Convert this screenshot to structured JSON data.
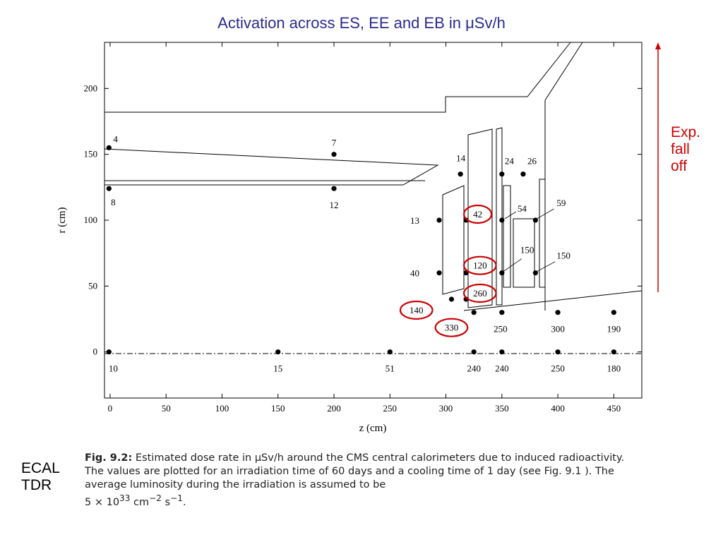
{
  "title": "Activation across ES, EE and EB in μSv/h",
  "side_annotation": [
    "Exp.",
    "fall",
    "off"
  ],
  "doc_label": [
    "ECAL",
    "TDR"
  ],
  "caption": {
    "label": "Fig. 9.2:",
    "text": "Estimated dose rate in μSv/h around the CMS central calorimeters due to induced radioactivity. The values are plotted for an irradiation time of 60 days and a cooling time of 1 day (see Fig. 9.1 ). The average luminosity during the irradiation is assumed to be",
    "formula_base": "5 × 10",
    "formula_exp1": "33",
    "formula_unit1": " cm",
    "formula_exp2": "−2",
    "formula_unit2": " s",
    "formula_exp3": "−1",
    "formula_end": "."
  },
  "colors": {
    "title": "#2b2b8f",
    "highlight": "#cc0000",
    "ink": "#000000"
  },
  "chart_data": {
    "type": "scatter",
    "xlabel": "z (cm)",
    "ylabel": "r (cm)",
    "xlim": [
      -5,
      475
    ],
    "ylim": [
      -35,
      235
    ],
    "xticks": [
      0,
      50,
      100,
      150,
      200,
      250,
      300,
      350,
      400,
      450
    ],
    "yticks": [
      0,
      50,
      100,
      150,
      200
    ],
    "points": [
      {
        "x": -1,
        "y": 155,
        "label": "4",
        "circled": false
      },
      {
        "x": -1,
        "y": 124,
        "label": "8",
        "circled": false
      },
      {
        "x": 200,
        "y": 150,
        "label": "7",
        "circled": false
      },
      {
        "x": 200,
        "y": 124,
        "label": "12",
        "circled": false
      },
      {
        "x": 313,
        "y": 135,
        "label": "14",
        "circled": false
      },
      {
        "x": 350,
        "y": 135,
        "label": "24",
        "circled": false
      },
      {
        "x": 369,
        "y": 135,
        "label": "26",
        "circled": false
      },
      {
        "x": 294,
        "y": 100,
        "label": "13",
        "circled": false
      },
      {
        "x": 318,
        "y": 100,
        "label": "42",
        "circled": true
      },
      {
        "x": 350,
        "y": 100,
        "label": "54",
        "circled": false
      },
      {
        "x": 380,
        "y": 100,
        "label": "59",
        "circled": false
      },
      {
        "x": 294,
        "y": 60,
        "label": "40",
        "circled": false
      },
      {
        "x": 318,
        "y": 60,
        "label": "120",
        "circled": true
      },
      {
        "x": 350,
        "y": 60,
        "label": "150",
        "circled": false
      },
      {
        "x": 380,
        "y": 60,
        "label": "150",
        "circled": false
      },
      {
        "x": 305,
        "y": 40,
        "label": "140",
        "circled": true
      },
      {
        "x": 318,
        "y": 40,
        "label": "260",
        "circled": true
      },
      {
        "x": 325,
        "y": 30,
        "label": "330",
        "circled": true
      },
      {
        "x": 350,
        "y": 30,
        "label": "250",
        "circled": false
      },
      {
        "x": 400,
        "y": 30,
        "label": "300",
        "circled": false
      },
      {
        "x": 450,
        "y": 30,
        "label": "190",
        "circled": false
      },
      {
        "x": -1,
        "y": 0,
        "label": "10",
        "circled": false
      },
      {
        "x": 150,
        "y": 0,
        "label": "15",
        "circled": false
      },
      {
        "x": 250,
        "y": 0,
        "label": "51",
        "circled": false
      },
      {
        "x": 325,
        "y": 0,
        "label": "240",
        "circled": false
      },
      {
        "x": 350,
        "y": 0,
        "label": "240",
        "circled": false
      },
      {
        "x": 400,
        "y": 0,
        "label": "250",
        "circled": false
      },
      {
        "x": 450,
        "y": 0,
        "label": "180",
        "circled": false
      }
    ]
  }
}
